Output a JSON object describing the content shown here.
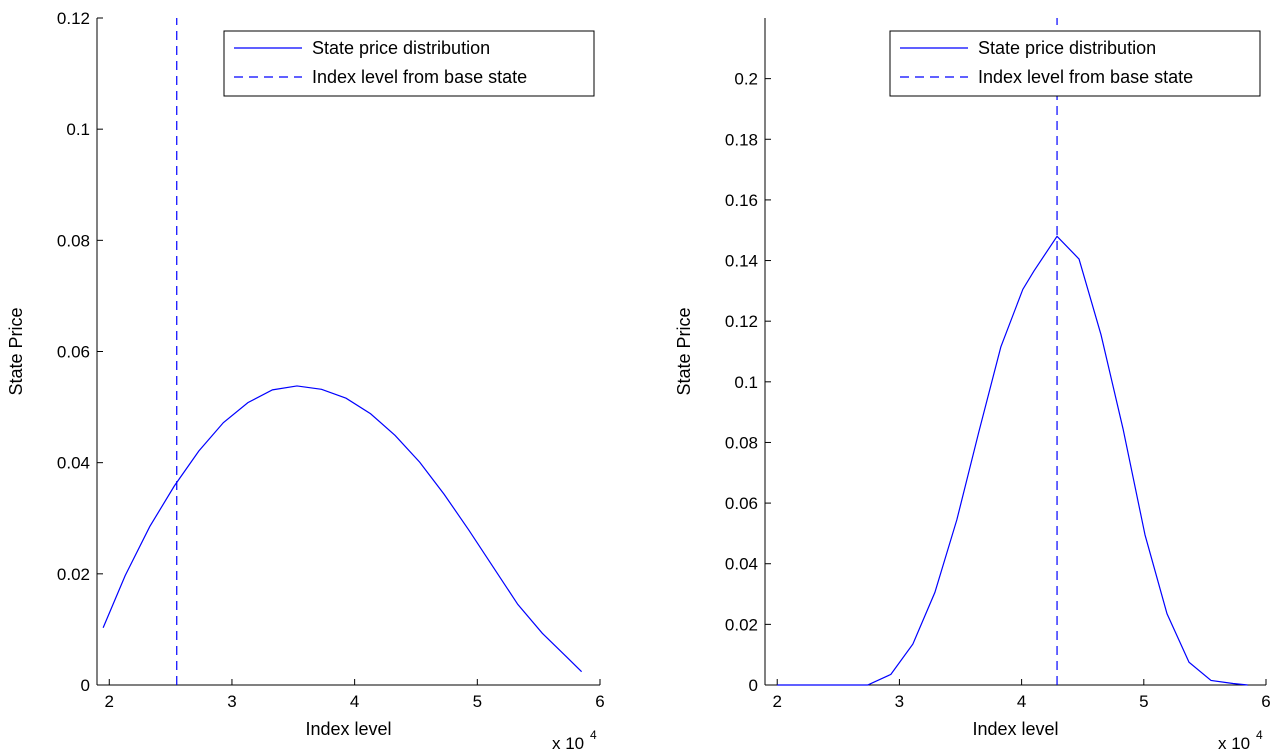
{
  "chart_data": [
    {
      "type": "line",
      "title": "",
      "xlabel": "Index level",
      "ylabel": "State Price",
      "x_multiplier_label": "x 10",
      "x_multiplier_exponent": "4",
      "xlim": [
        1.9,
        6.0
      ],
      "ylim": [
        0,
        0.12
      ],
      "xticks": [
        2,
        3,
        4,
        5,
        6
      ],
      "xtick_labels": [
        "2",
        "3",
        "4",
        "5",
        "6"
      ],
      "yticks": [
        0,
        0.02,
        0.04,
        0.06,
        0.08,
        0.1,
        0.12
      ],
      "ytick_labels": [
        "0",
        "0.02",
        "0.04",
        "0.06",
        "0.08",
        "0.1",
        "0.12"
      ],
      "grid": false,
      "legend_position": "top-right",
      "series": [
        {
          "name": "State price distribution",
          "style": "solid",
          "color": "#0000ff",
          "x": [
            1.95,
            2.13,
            2.33,
            2.53,
            2.73,
            2.93,
            3.13,
            3.33,
            3.53,
            3.73,
            3.93,
            4.13,
            4.33,
            4.53,
            4.73,
            4.93,
            5.13,
            5.33,
            5.53,
            5.73,
            5.85
          ],
          "y": [
            0.0103,
            0.0197,
            0.0285,
            0.0358,
            0.0421,
            0.0472,
            0.0508,
            0.0531,
            0.0538,
            0.0532,
            0.0516,
            0.0488,
            0.0449,
            0.0401,
            0.0343,
            0.0279,
            0.0212,
            0.0145,
            0.0093,
            0.005,
            0.0024
          ]
        },
        {
          "name": "Index level from base state",
          "style": "dashed",
          "color": "#0000ff",
          "type": "vline",
          "x": [
            2.55,
            2.55
          ],
          "y": [
            0,
            0.12
          ]
        }
      ]
    },
    {
      "type": "line",
      "title": "",
      "xlabel": "Index level",
      "ylabel": "State Price",
      "x_multiplier_label": "x 10",
      "x_multiplier_exponent": "4",
      "xlim": [
        1.9,
        6.0
      ],
      "ylim": [
        0,
        0.22
      ],
      "xticks": [
        2,
        3,
        4,
        5,
        6
      ],
      "xtick_labels": [
        "2",
        "3",
        "4",
        "5",
        "6"
      ],
      "yticks": [
        0,
        0.02,
        0.04,
        0.06,
        0.08,
        0.1,
        0.12,
        0.14,
        0.16,
        0.18,
        0.2
      ],
      "ytick_labels": [
        "0",
        "0.02",
        "0.04",
        "0.06",
        "0.08",
        "0.1",
        "0.12",
        "0.14",
        "0.16",
        "0.18",
        "0.2"
      ],
      "grid": false,
      "legend_position": "top-right",
      "series": [
        {
          "name": "State price distribution",
          "style": "solid",
          "color": "#0000ff",
          "x": [
            2.0,
            2.2,
            2.4,
            2.6,
            2.74,
            2.93,
            3.11,
            3.29,
            3.47,
            3.65,
            3.83,
            4.01,
            4.1,
            4.29,
            4.47,
            4.65,
            4.83,
            5.01,
            5.19,
            5.37,
            5.55,
            5.73,
            5.85
          ],
          "y": [
            0,
            0,
            0,
            0,
            0,
            0.0035,
            0.0135,
            0.0305,
            0.0545,
            0.0835,
            0.1115,
            0.1305,
            0.1365,
            0.148,
            0.1405,
            0.1155,
            0.0845,
            0.0495,
            0.0235,
            0.0075,
            0.0015,
            0.0005,
            0
          ]
        },
        {
          "name": "Index level from base state",
          "style": "dashed",
          "color": "#0000ff",
          "type": "vline",
          "x": [
            4.29,
            4.29
          ],
          "y": [
            0,
            0.22
          ]
        }
      ]
    }
  ]
}
